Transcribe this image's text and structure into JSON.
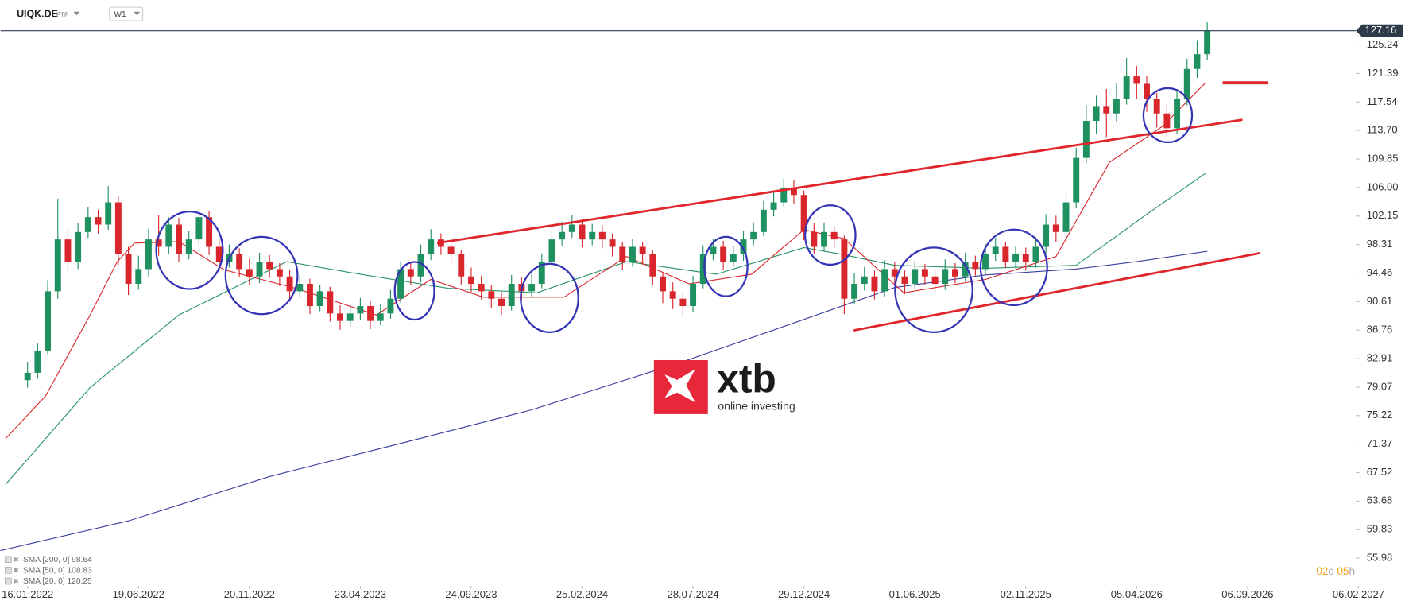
{
  "chart_data": {
    "type": "candlestick",
    "symbol": "UIQK.DE",
    "instrument_type": "ETF",
    "timeframe": "W1",
    "up_color": "#1f9160",
    "down_color": "#d9262c",
    "open": [
      80,
      81,
      84,
      92,
      99,
      96,
      100,
      102,
      101,
      104,
      97,
      93,
      95,
      99,
      98,
      101,
      97,
      99,
      102,
      98,
      96,
      97,
      95,
      94,
      96,
      95,
      94,
      92,
      93,
      90,
      92,
      89,
      88,
      89,
      90,
      88,
      89,
      91,
      95,
      94,
      97,
      99,
      98,
      97,
      94,
      93,
      92,
      91,
      90,
      93,
      92,
      93,
      96,
      99,
      100,
      101,
      99,
      100,
      99,
      98,
      96,
      98,
      97,
      94,
      92,
      91,
      90,
      93,
      97,
      98,
      96,
      97,
      99,
      100,
      103,
      104,
      106,
      105,
      100,
      98,
      100,
      99,
      91,
      93,
      94,
      92,
      95,
      94,
      93,
      95,
      94,
      93,
      95,
      94,
      96,
      95,
      97,
      98,
      96,
      97,
      96,
      98,
      101,
      100,
      104,
      110,
      115,
      117,
      116,
      118,
      121,
      120,
      118,
      116,
      114,
      118,
      122,
      124
    ],
    "high": [
      82.5,
      85,
      93.5,
      104.5,
      100.5,
      101.2,
      103.4,
      103,
      106.2,
      104.8,
      98,
      96.8,
      100.4,
      102.3,
      102,
      101.9,
      100.2,
      103.1,
      102.8,
      99.1,
      98.3,
      97.8,
      96.4,
      97.2,
      96.9,
      95.8,
      94.9,
      94.1,
      93.7,
      92.8,
      92.6,
      90.1,
      90.2,
      91.1,
      90.7,
      90.3,
      92.2,
      96.1,
      96,
      98.3,
      100.4,
      99.8,
      99.1,
      97.6,
      95.2,
      94.1,
      92.8,
      91.9,
      94.2,
      93.9,
      94.3,
      97.1,
      100.2,
      101.4,
      102.3,
      101.8,
      101.1,
      100.9,
      99.8,
      98.6,
      99.1,
      98.7,
      97.5,
      94.6,
      93.2,
      91.8,
      94.1,
      98.2,
      99.1,
      98.8,
      98.1,
      100.2,
      101.3,
      104.2,
      105.4,
      107.2,
      107,
      105.6,
      101.2,
      101.3,
      100.8,
      99.5,
      94.4,
      95.3,
      94.8,
      96.2,
      95.9,
      94.8,
      96.1,
      95.7,
      94.9,
      96.3,
      95.8,
      97.2,
      96.8,
      98.4,
      99.2,
      98.7,
      98.1,
      97.9,
      99.3,
      102.4,
      102.2,
      105.3,
      111.4,
      117.1,
      118.4,
      119.3,
      120.1,
      123.5,
      122.4,
      121.1,
      118.8,
      117.2,
      119.3,
      123.4,
      125.9,
      128.3
    ],
    "low": [
      79,
      80.2,
      83.5,
      91,
      94.8,
      95,
      99.2,
      99.8,
      100.3,
      95.6,
      91.5,
      92.2,
      94,
      96.8,
      97.1,
      95.9,
      96.3,
      98.2,
      96.9,
      94.7,
      95.2,
      93.9,
      92.8,
      93.1,
      93.8,
      92.7,
      90.6,
      91.2,
      88.9,
      89.3,
      87.9,
      86.8,
      87.2,
      88.1,
      86.9,
      87.4,
      88.3,
      90.4,
      92.9,
      93.2,
      96.2,
      96.9,
      95.8,
      92.9,
      91.8,
      90.9,
      89.7,
      88.8,
      89.4,
      90.8,
      91.2,
      92.4,
      95.3,
      98.1,
      99.2,
      97.9,
      98.2,
      97.8,
      96.7,
      94.9,
      95.3,
      95.6,
      92.8,
      90.4,
      89.6,
      88.7,
      89.2,
      92.4,
      96.2,
      94.9,
      95.3,
      96.1,
      98.2,
      99.4,
      102.1,
      103.3,
      103.8,
      98.9,
      97.1,
      97.4,
      97.9,
      88.9,
      90.2,
      92.1,
      90.9,
      91.3,
      92.8,
      91.6,
      92.3,
      92.9,
      91.8,
      92.2,
      93.1,
      93.3,
      94.1,
      94.3,
      96.1,
      95.2,
      95.1,
      94.8,
      95.2,
      97.1,
      98.6,
      99.2,
      103.2,
      109.3,
      113.2,
      112.8,
      114.9,
      117.2,
      117.9,
      116.2,
      114.1,
      112.9,
      113.2,
      117.1,
      120.8,
      123.2
    ],
    "close": [
      81,
      84,
      92,
      99,
      96,
      100,
      102,
      101,
      104,
      97,
      93,
      95,
      99,
      98,
      101,
      97,
      99,
      102,
      98,
      96,
      97,
      95,
      94,
      96,
      95,
      94,
      92,
      93,
      90,
      92,
      89,
      88,
      89,
      90,
      88,
      89,
      91,
      95,
      94,
      97,
      99,
      98,
      97,
      94,
      93,
      92,
      91,
      90,
      93,
      92,
      93,
      96,
      99,
      100,
      101,
      99,
      100,
      99,
      98,
      96,
      98,
      97,
      94,
      92,
      91,
      90,
      93,
      97,
      98,
      96,
      97,
      99,
      100,
      103,
      104,
      106,
      105,
      100,
      98,
      100,
      99,
      91,
      93,
      94,
      92,
      95,
      94,
      93,
      95,
      94,
      93,
      95,
      94,
      96,
      95,
      97,
      98,
      96,
      97,
      96,
      98,
      101,
      100,
      104,
      110,
      115,
      117,
      116,
      118,
      121,
      120,
      118,
      116,
      114,
      118,
      122,
      124,
      127.16
    ],
    "xlim": [
      -2.68,
      132.9
    ],
    "ylim": [
      52.33,
      128.64
    ],
    "xticks": [
      {
        "value": 0,
        "label": "16.01.2022"
      },
      {
        "value": 11,
        "label": "19.06.2022"
      },
      {
        "value": 22,
        "label": "20.11.2022"
      },
      {
        "value": 33,
        "label": "23.04.2023"
      },
      {
        "value": 44,
        "label": "24.09.2023"
      },
      {
        "value": 55,
        "label": "25.02.2024"
      },
      {
        "value": 66,
        "label": "28.07.2024"
      },
      {
        "value": 77,
        "label": "29.12.2024"
      },
      {
        "value": 88,
        "label": "01.06.2025"
      },
      {
        "value": 99,
        "label": "02.11.2025"
      },
      {
        "value": 110,
        "label": "05.04.2026"
      },
      {
        "value": 121,
        "label": "06.09.2026"
      },
      {
        "value": 132,
        "label": "06.02.2027"
      }
    ],
    "yticks": [
      125.24,
      121.39,
      117.54,
      {
        "value": 113.7,
        "label": "113.70"
      },
      109.85,
      {
        "value": 106,
        "label": "106.00"
      },
      102.15,
      98.31,
      94.46,
      90.61,
      86.76,
      82.91,
      79.07,
      75.22,
      71.37,
      67.52,
      63.68,
      59.83,
      55.98
    ],
    "indicators": [
      {
        "name": "SMA [200, 0] 98.64",
        "color": "#3b3f9e",
        "x": [
          -2.7,
          10,
          24,
          40,
          50,
          65,
          77,
          86,
          95,
          104,
          110,
          117
        ],
        "values": [
          57,
          61,
          67,
          72.5,
          76,
          82.5,
          88.2,
          92.5,
          94.2,
          95,
          96,
          97.4
        ]
      },
      {
        "name": "SMA [50, 0] 108.83",
        "color": "#2a9566",
        "x": [
          -2.2,
          6.2,
          15,
          25.7,
          33,
          41.7,
          50.5,
          59.4,
          68.3,
          77,
          80.7,
          86,
          95,
          104,
          110.8,
          116.8
        ],
        "values": [
          65.9,
          79,
          88.8,
          96,
          94.3,
          92.4,
          91.8,
          96,
          94.3,
          97.9,
          97,
          95.5,
          95.1,
          95.5,
          102.2,
          107.9
        ]
      },
      {
        "name": "SMA [20, 0] 120.25",
        "color": "#d9262c",
        "x": [
          -2.2,
          1.8,
          6.2,
          8.9,
          10.6,
          15,
          19.5,
          26.6,
          34.6,
          40,
          45.2,
          53.2,
          59.4,
          65.6,
          71.8,
          77,
          81,
          86.9,
          95,
          102,
          107.3,
          112.6,
          116.8
        ],
        "values": [
          72.1,
          77.9,
          88.8,
          96,
          98.5,
          98.7,
          94.9,
          92.4,
          88.8,
          93.6,
          91.2,
          91.2,
          96.7,
          93,
          94.3,
          100.3,
          99.1,
          91.8,
          93.6,
          96.7,
          109.4,
          114.3,
          120.1
        ]
      }
    ],
    "watermark": {
      "brand": "xtb",
      "tagline": "online investing"
    },
    "countdown": {
      "days": "02",
      "day_unit": "d",
      "hours": "05",
      "hour_unit": "h"
    }
  }
}
